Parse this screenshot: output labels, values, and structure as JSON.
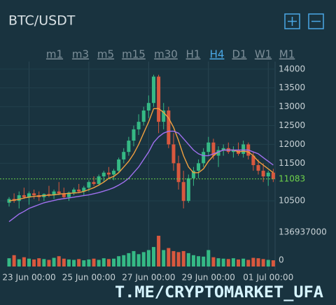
{
  "chart_data": {
    "type": "candlestick",
    "title": "BTC/USDT",
    "timeframes": [
      "m1",
      "m3",
      "m5",
      "m15",
      "m30",
      "H1",
      "H4",
      "D1",
      "W1",
      "M1"
    ],
    "active_timeframe": "H4",
    "categories": [
      null,
      null,
      null,
      null,
      "23 Jun 00:00",
      null,
      null,
      null,
      null,
      null,
      null,
      null,
      null,
      null,
      null,
      null,
      "25 Jun 00:00",
      null,
      null,
      null,
      null,
      null,
      null,
      null,
      null,
      null,
      null,
      null,
      "27 Jun 00:00",
      null,
      null,
      null,
      null,
      null,
      null,
      null,
      null,
      null,
      null,
      null,
      "29 Jun 00:00",
      null,
      null,
      null,
      null,
      null,
      null,
      null,
      null,
      null,
      null,
      null,
      "01 Jul 00:00",
      null
    ],
    "open": [
      10450,
      10550,
      10500,
      10650,
      10600,
      10700,
      10650,
      10600,
      10680,
      10650,
      10750,
      10700,
      10600,
      10720,
      10800,
      10750,
      10850,
      11000,
      10950,
      11150,
      11250,
      11200,
      11300,
      11600,
      11800,
      12100,
      12400,
      12600,
      12900,
      13100,
      13800,
      12600,
      12900,
      12000,
      11500,
      11000,
      10500,
      11100,
      11300,
      11500,
      11800,
      12050,
      11700,
      11850,
      11900,
      11800,
      11850,
      11750,
      12000,
      11700,
      11450,
      11300,
      11150,
      11250
    ],
    "high": [
      10600,
      10700,
      10750,
      10850,
      10750,
      10800,
      10750,
      10700,
      10900,
      10800,
      11000,
      10850,
      10750,
      10850,
      10950,
      10900,
      11050,
      11150,
      11200,
      11300,
      11400,
      11350,
      11650,
      11900,
      12200,
      12500,
      12800,
      13000,
      13300,
      13850,
      13850,
      13100,
      13000,
      12300,
      11700,
      11300,
      11200,
      11400,
      11600,
      11900,
      12200,
      12150,
      11950,
      12000,
      12050,
      11950,
      12050,
      12100,
      12050,
      11800,
      11600,
      11500,
      11300,
      11350
    ],
    "low": [
      10350,
      10450,
      10300,
      10550,
      10400,
      10550,
      10500,
      10500,
      10600,
      10550,
      10650,
      10550,
      10500,
      10650,
      10700,
      10650,
      10750,
      10900,
      10900,
      11000,
      11100,
      11050,
      11250,
      11500,
      11700,
      11950,
      12250,
      12500,
      12700,
      13000,
      12300,
      12400,
      11900,
      11300,
      10800,
      10300,
      10450,
      10900,
      11100,
      11400,
      11700,
      11600,
      11400,
      11700,
      11750,
      11650,
      11700,
      11650,
      11600,
      11300,
      11200,
      11000,
      10900,
      11000
    ],
    "close": [
      10550,
      10500,
      10650,
      10600,
      10700,
      10650,
      10600,
      10680,
      10650,
      10750,
      10700,
      10600,
      10720,
      10800,
      10750,
      10850,
      11000,
      10950,
      11150,
      11250,
      11200,
      11300,
      11600,
      11800,
      12100,
      12400,
      12600,
      12900,
      13100,
      13800,
      12600,
      12900,
      12000,
      11500,
      11000,
      10500,
      11100,
      11300,
      11500,
      11800,
      12050,
      11700,
      11850,
      11900,
      11800,
      11850,
      11750,
      12000,
      11700,
      11450,
      11300,
      11150,
      11250,
      11083
    ],
    "volume": [
      20000000,
      35000000,
      15000000,
      25000000,
      18000000,
      14000000,
      20000000,
      16000000,
      12000000,
      22000000,
      30000000,
      18000000,
      14000000,
      12000000,
      16000000,
      10000000,
      14000000,
      18000000,
      12000000,
      20000000,
      16000000,
      18000000,
      30000000,
      35000000,
      45000000,
      55000000,
      40000000,
      50000000,
      60000000,
      75000000,
      130000000,
      60000000,
      70000000,
      55000000,
      50000000,
      55000000,
      45000000,
      35000000,
      30000000,
      28000000,
      60000000,
      25000000,
      20000000,
      18000000,
      16000000,
      20000000,
      14000000,
      18000000,
      12000000,
      22000000,
      20000000,
      16000000,
      12000000,
      10000000
    ],
    "ma_lines": [
      {
        "color": "#f0a040",
        "values": [
          10500,
          10520,
          10540,
          10580,
          10600,
          10620,
          10630,
          10640,
          10650,
          10660,
          10680,
          10690,
          10700,
          10710,
          10720,
          10750,
          10800,
          10850,
          10920,
          11000,
          11100,
          11150,
          11250,
          11400,
          11550,
          11750,
          12000,
          12300,
          12600,
          12950,
          12950,
          12850,
          12700,
          12450,
          12100,
          11700,
          11400,
          11250,
          11250,
          11350,
          11550,
          11700,
          11800,
          11850,
          11850,
          11850,
          11800,
          11820,
          11800,
          11700,
          11550,
          11450,
          11350,
          11250
        ]
      },
      {
        "color": "#a070f0",
        "values": [
          9950,
          10050,
          10150,
          10220,
          10300,
          10350,
          10400,
          10450,
          10480,
          10510,
          10540,
          10560,
          10580,
          10600,
          10620,
          10640,
          10660,
          10690,
          10720,
          10760,
          10800,
          10850,
          10920,
          11000,
          11100,
          11250,
          11400,
          11600,
          11800,
          12050,
          12200,
          12300,
          12350,
          12350,
          12300,
          12150,
          12000,
          11850,
          11750,
          11700,
          11700,
          11750,
          11800,
          11850,
          11850,
          11850,
          11850,
          11850,
          11850,
          11800,
          11750,
          11650,
          11550,
          11450
        ]
      }
    ],
    "up_color": "#35b985",
    "down_color": "#d9583e",
    "ylim": [
      9890,
      14200
    ],
    "yticks": [
      10500,
      11500,
      12000,
      12500,
      13000,
      13500,
      14000
    ],
    "last_price": 11083,
    "last_price_color": "#6fd34a",
    "volume_ylim": [
      0,
      136937000
    ],
    "volume_yticks": [
      0,
      136937000
    ],
    "grid": true,
    "watermark": "T.ME/CRYPTOMARKET_UFA"
  }
}
